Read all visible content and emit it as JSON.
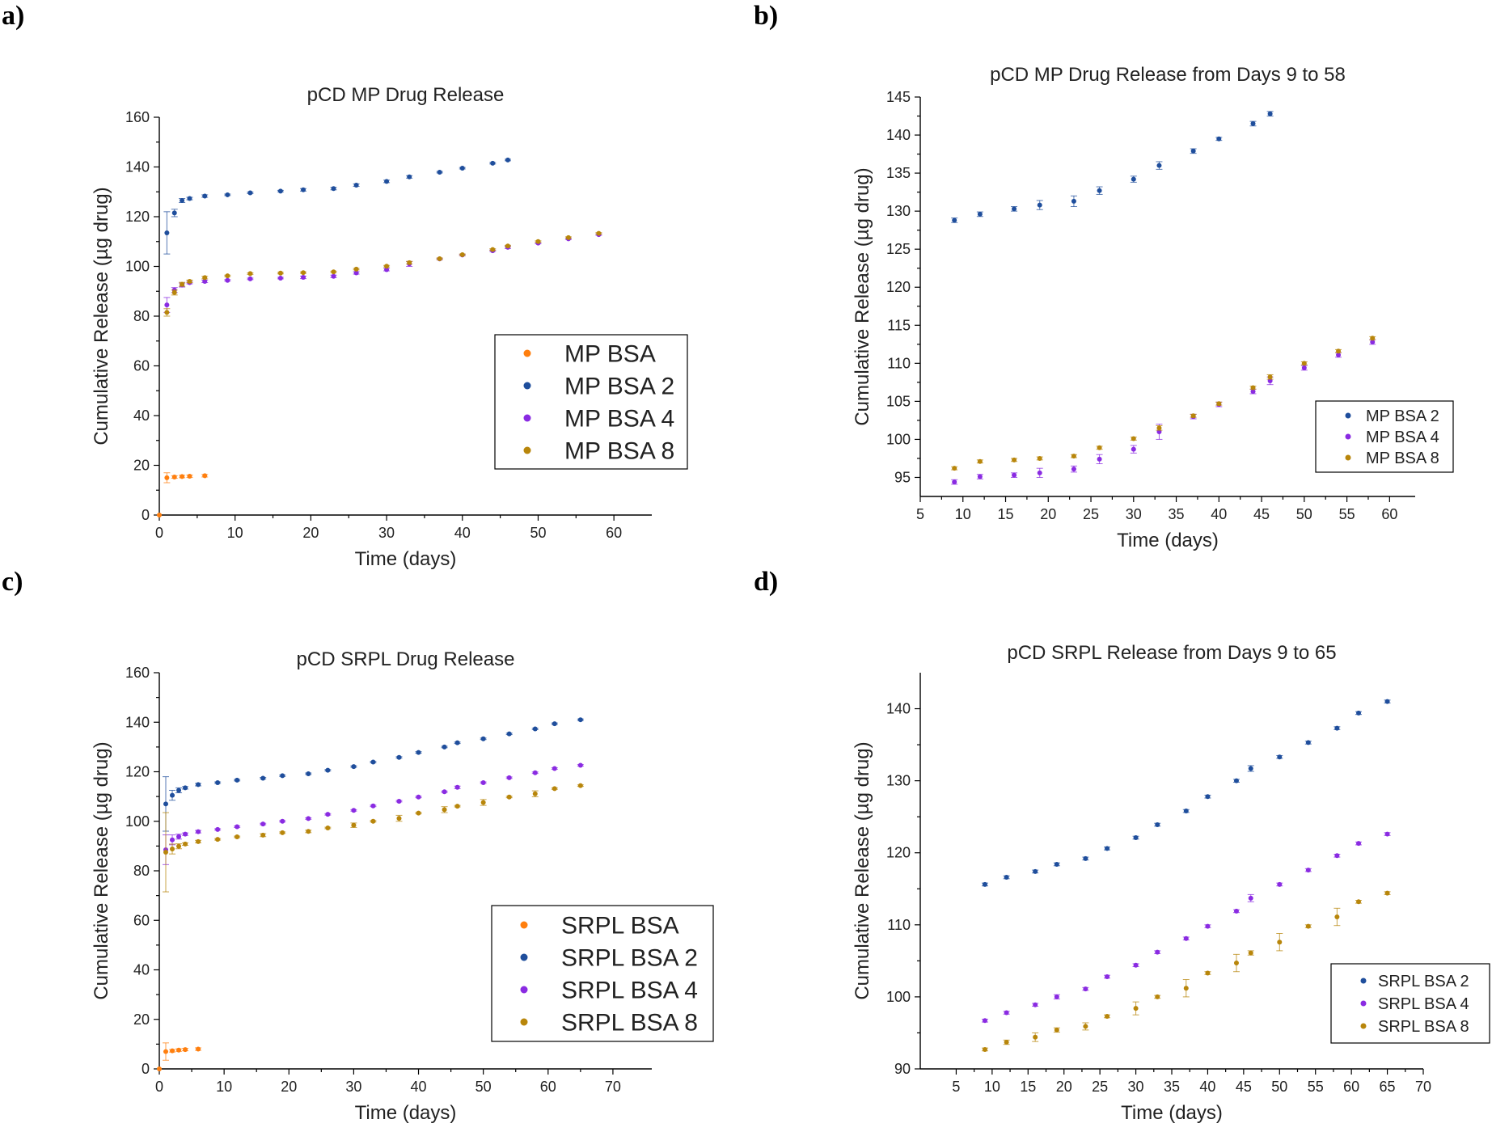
{
  "figure": {
    "colors": {
      "orange": "#ff7f0e",
      "blue": "#1f4e9c",
      "purple": "#8a2be2",
      "brown": "#b8860b"
    }
  },
  "chart_data": [
    {
      "panel_label": "a)",
      "type": "scatter",
      "title": "pCD MP Drug Release",
      "xlabel": "Time (days)",
      "ylabel": "Cumulative Release (µg drug)",
      "xlim": [
        0,
        65
      ],
      "ylim": [
        0,
        160
      ],
      "xticks": [
        0,
        10,
        20,
        30,
        40,
        50,
        60
      ],
      "yticks": [
        0,
        20,
        40,
        60,
        80,
        100,
        120,
        140,
        160
      ],
      "legend_position": "center-right",
      "legend_size": "large",
      "series": [
        {
          "name": "MP BSA",
          "color": "#ff7f0e",
          "x": [
            0,
            1,
            2,
            3,
            4,
            6
          ],
          "y": [
            0,
            15,
            15.3,
            15.5,
            15.6,
            15.8
          ],
          "err": [
            0,
            2,
            0.5,
            0.5,
            0.5,
            0.5
          ]
        },
        {
          "name": "MP BSA 2",
          "color": "#1f4e9c",
          "x": [
            1,
            2,
            3,
            4,
            6,
            9,
            12,
            16,
            19,
            23,
            26,
            30,
            33,
            37,
            40,
            44,
            46
          ],
          "y": [
            113.5,
            121.5,
            126.5,
            127.3,
            128.3,
            128.8,
            129.6,
            130.3,
            130.8,
            131.3,
            132.7,
            134.2,
            136.0,
            137.9,
            139.5,
            141.5,
            142.8
          ],
          "err": [
            8.5,
            1.5,
            0.8,
            0.5,
            0.5,
            0.3,
            0.3,
            0.3,
            0.5,
            0.5,
            0.5,
            0.5,
            0.5,
            0.3,
            0.3,
            0.3,
            0.3
          ]
        },
        {
          "name": "MP BSA 4",
          "color": "#8a2be2",
          "x": [
            1,
            2,
            3,
            4,
            6,
            9,
            12,
            16,
            19,
            23,
            26,
            30,
            33,
            37,
            40,
            44,
            46,
            50,
            54,
            58
          ],
          "y": [
            84.5,
            90.5,
            92.5,
            93.5,
            94.0,
            94.4,
            95.0,
            95.3,
            95.6,
            96.0,
            97.4,
            98.7,
            101.0,
            103.0,
            104.6,
            106.3,
            107.7,
            109.4,
            111.1,
            112.8
          ],
          "err": [
            3,
            1,
            0.8,
            0.5,
            0.5,
            0.3,
            0.3,
            0.3,
            0.5,
            0.5,
            0.5,
            0.5,
            1,
            0.3,
            0.3,
            0.3,
            0.5,
            0.3,
            0.3,
            0.3
          ]
        },
        {
          "name": "MP BSA 8",
          "color": "#b8860b",
          "x": [
            1,
            2,
            3,
            4,
            6,
            9,
            12,
            16,
            19,
            23,
            26,
            30,
            33,
            37,
            40,
            44,
            46,
            50,
            54,
            58
          ],
          "y": [
            81.5,
            89.5,
            92.8,
            94.0,
            95.5,
            96.2,
            97.1,
            97.3,
            97.5,
            97.8,
            98.9,
            100.1,
            101.5,
            103.1,
            104.7,
            106.8,
            108.2,
            110.0,
            111.6,
            113.3
          ],
          "err": [
            1.5,
            1,
            0.8,
            0.5,
            0.5,
            0.3,
            0.3,
            0.3,
            0.3,
            0.3,
            0.3,
            0.3,
            0.5,
            0.3,
            0.3,
            0.3,
            0.3,
            0.3,
            0.3,
            0.3
          ]
        }
      ]
    },
    {
      "panel_label": "b)",
      "type": "scatter",
      "title": "pCD MP Drug Release from Days 9 to 58",
      "xlabel": "Time (days)",
      "ylabel": "Cumulative Release (µg drug)",
      "xlim": [
        5,
        63
      ],
      "ylim": [
        92.5,
        145
      ],
      "xticks": [
        5,
        10,
        15,
        20,
        25,
        30,
        35,
        40,
        45,
        50,
        55,
        60
      ],
      "yticks": [
        95,
        100,
        105,
        110,
        115,
        120,
        125,
        130,
        135,
        140,
        145
      ],
      "legend_position": "bottom-right",
      "legend_size": "small",
      "series": [
        {
          "name": "MP BSA 2",
          "color": "#1f4e9c",
          "x": [
            9,
            12,
            16,
            19,
            23,
            26,
            30,
            33,
            37,
            40,
            44,
            46
          ],
          "y": [
            128.8,
            129.6,
            130.3,
            130.8,
            131.3,
            132.7,
            134.2,
            136.0,
            137.9,
            139.5,
            141.5,
            142.8
          ],
          "err": [
            0.3,
            0.3,
            0.3,
            0.6,
            0.7,
            0.5,
            0.4,
            0.5,
            0.3,
            0.2,
            0.3,
            0.3
          ]
        },
        {
          "name": "MP BSA 4",
          "color": "#8a2be2",
          "x": [
            9,
            12,
            16,
            19,
            23,
            26,
            30,
            33,
            37,
            40,
            44,
            46,
            50,
            54,
            58
          ],
          "y": [
            94.4,
            95.1,
            95.3,
            95.6,
            96.1,
            97.4,
            98.7,
            101.0,
            103.0,
            104.6,
            106.3,
            107.7,
            109.4,
            111.1,
            112.8
          ],
          "err": [
            0.3,
            0.3,
            0.3,
            0.6,
            0.4,
            0.6,
            0.5,
            1.0,
            0.3,
            0.3,
            0.3,
            0.5,
            0.3,
            0.3,
            0.3
          ]
        },
        {
          "name": "MP BSA 8",
          "color": "#b8860b",
          "x": [
            9,
            12,
            16,
            19,
            23,
            26,
            30,
            33,
            37,
            40,
            44,
            46,
            50,
            54,
            58
          ],
          "y": [
            96.2,
            97.1,
            97.3,
            97.5,
            97.8,
            98.9,
            100.1,
            101.5,
            103.1,
            104.7,
            106.8,
            108.2,
            110.0,
            111.6,
            113.3
          ],
          "err": [
            0.2,
            0.2,
            0.2,
            0.2,
            0.2,
            0.2,
            0.2,
            0.3,
            0.2,
            0.2,
            0.2,
            0.3,
            0.2,
            0.2,
            0.2
          ]
        }
      ]
    },
    {
      "panel_label": "c)",
      "type": "scatter",
      "title": "pCD SRPL Drug Release",
      "xlabel": "Time (days)",
      "ylabel": "Cumulative Release (µg drug)",
      "xlim": [
        0,
        76
      ],
      "ylim": [
        0,
        160
      ],
      "xticks": [
        0,
        10,
        20,
        30,
        40,
        50,
        60,
        70
      ],
      "yticks": [
        0,
        20,
        40,
        60,
        80,
        100,
        120,
        140,
        160
      ],
      "legend_position": "bottom-right",
      "legend_size": "large",
      "series": [
        {
          "name": "SRPL BSA",
          "color": "#ff7f0e",
          "x": [
            0,
            1,
            2,
            3,
            4,
            6
          ],
          "y": [
            0,
            7,
            7.3,
            7.6,
            7.8,
            8.0
          ],
          "err": [
            0,
            3.5,
            0.5,
            0.5,
            0.5,
            0.5
          ]
        },
        {
          "name": "SRPL BSA 2",
          "color": "#1f4e9c",
          "x": [
            1,
            2,
            3,
            4,
            6,
            9,
            12,
            16,
            19,
            23,
            26,
            30,
            33,
            37,
            40,
            44,
            46,
            50,
            54,
            58,
            61,
            65
          ],
          "y": [
            107,
            110.5,
            112.5,
            113.5,
            114.8,
            115.6,
            116.6,
            117.4,
            118.4,
            119.2,
            120.6,
            122.1,
            123.9,
            125.8,
            127.8,
            130.0,
            131.7,
            133.3,
            135.3,
            137.3,
            139.4,
            141.0
          ],
          "err": [
            11,
            2,
            1,
            0.5,
            0.5,
            0.3,
            0.3,
            0.3,
            0.3,
            0.3,
            0.3,
            0.3,
            0.3,
            0.3,
            0.3,
            0.3,
            0.3,
            0.3,
            0.3,
            0.3,
            0.3,
            0.3
          ]
        },
        {
          "name": "SRPL BSA 4",
          "color": "#8a2be2",
          "x": [
            1,
            2,
            3,
            4,
            6,
            9,
            12,
            16,
            19,
            23,
            26,
            30,
            33,
            37,
            40,
            44,
            46,
            50,
            54,
            58,
            61,
            65
          ],
          "y": [
            88.5,
            92.5,
            93.8,
            94.8,
            95.8,
            96.7,
            97.8,
            98.9,
            100.0,
            101.1,
            102.8,
            104.4,
            106.2,
            108.1,
            109.8,
            111.9,
            113.7,
            115.6,
            117.6,
            119.6,
            121.3,
            122.6
          ],
          "err": [
            6,
            2,
            1,
            0.5,
            0.5,
            0.3,
            0.3,
            0.3,
            0.3,
            0.3,
            0.3,
            0.3,
            0.3,
            0.3,
            0.3,
            0.3,
            0.5,
            0.3,
            0.3,
            0.3,
            0.3,
            0.3
          ]
        },
        {
          "name": "SRPL BSA 8",
          "color": "#b8860b",
          "x": [
            1,
            2,
            3,
            4,
            6,
            9,
            12,
            16,
            19,
            23,
            26,
            30,
            33,
            37,
            40,
            44,
            46,
            50,
            54,
            58,
            61,
            65
          ],
          "y": [
            87.5,
            88.8,
            89.9,
            90.8,
            91.8,
            92.7,
            93.7,
            94.4,
            95.4,
            95.9,
            97.3,
            98.4,
            100.0,
            101.2,
            103.3,
            104.7,
            106.1,
            107.6,
            109.8,
            111.1,
            113.2,
            114.4
          ],
          "err": [
            16,
            2,
            1,
            0.5,
            0.5,
            0.3,
            0.3,
            0.6,
            0.3,
            0.5,
            0.3,
            0.9,
            0.3,
            1.2,
            0.3,
            1.2,
            0.3,
            1.2,
            0.3,
            1.2,
            0.3,
            0.3
          ]
        }
      ]
    },
    {
      "panel_label": "d)",
      "type": "scatter",
      "title": "pCD SRPL Release from Days 9 to 65",
      "xlabel": "Time (days)",
      "ylabel": "Cumulative Release (µg drug)",
      "xlim": [
        0,
        70
      ],
      "ylim": [
        90,
        145
      ],
      "xticks": [
        5,
        10,
        15,
        20,
        25,
        30,
        35,
        40,
        45,
        50,
        55,
        60,
        65,
        70
      ],
      "yticks": [
        90,
        100,
        110,
        120,
        130,
        140
      ],
      "legend_position": "bottom-right",
      "legend_size": "small",
      "series": [
        {
          "name": "SRPL BSA 2",
          "color": "#1f4e9c",
          "x": [
            9,
            12,
            16,
            19,
            23,
            26,
            30,
            33,
            37,
            40,
            44,
            46,
            50,
            54,
            58,
            61,
            65
          ],
          "y": [
            115.6,
            116.6,
            117.4,
            118.4,
            119.2,
            120.6,
            122.1,
            123.9,
            125.8,
            127.8,
            130.0,
            131.7,
            133.3,
            135.3,
            137.3,
            139.4,
            141.0
          ],
          "err": [
            0.2,
            0.2,
            0.2,
            0.2,
            0.2,
            0.2,
            0.2,
            0.2,
            0.2,
            0.2,
            0.2,
            0.4,
            0.2,
            0.2,
            0.2,
            0.2,
            0.2
          ]
        },
        {
          "name": "SRPL BSA 4",
          "color": "#8a2be2",
          "x": [
            9,
            12,
            16,
            19,
            23,
            26,
            30,
            33,
            37,
            40,
            44,
            46,
            50,
            54,
            58,
            61,
            65
          ],
          "y": [
            96.7,
            97.8,
            98.9,
            100.0,
            101.1,
            102.8,
            104.4,
            106.2,
            108.1,
            109.8,
            111.9,
            113.7,
            115.6,
            117.6,
            119.6,
            121.3,
            122.6
          ],
          "err": [
            0.2,
            0.2,
            0.2,
            0.3,
            0.2,
            0.2,
            0.2,
            0.2,
            0.2,
            0.2,
            0.2,
            0.5,
            0.2,
            0.2,
            0.2,
            0.2,
            0.2
          ]
        },
        {
          "name": "SRPL BSA 8",
          "color": "#b8860b",
          "x": [
            9,
            12,
            16,
            19,
            23,
            26,
            30,
            33,
            37,
            40,
            44,
            46,
            50,
            54,
            58,
            61,
            65
          ],
          "y": [
            92.7,
            93.7,
            94.4,
            95.4,
            95.9,
            97.3,
            98.4,
            100.0,
            101.2,
            103.3,
            104.7,
            106.1,
            107.6,
            109.8,
            111.1,
            113.2,
            114.4
          ],
          "err": [
            0.2,
            0.3,
            0.6,
            0.3,
            0.5,
            0.2,
            0.9,
            0.2,
            1.2,
            0.2,
            1.2,
            0.3,
            1.2,
            0.2,
            1.2,
            0.2,
            0.2
          ]
        }
      ]
    }
  ]
}
